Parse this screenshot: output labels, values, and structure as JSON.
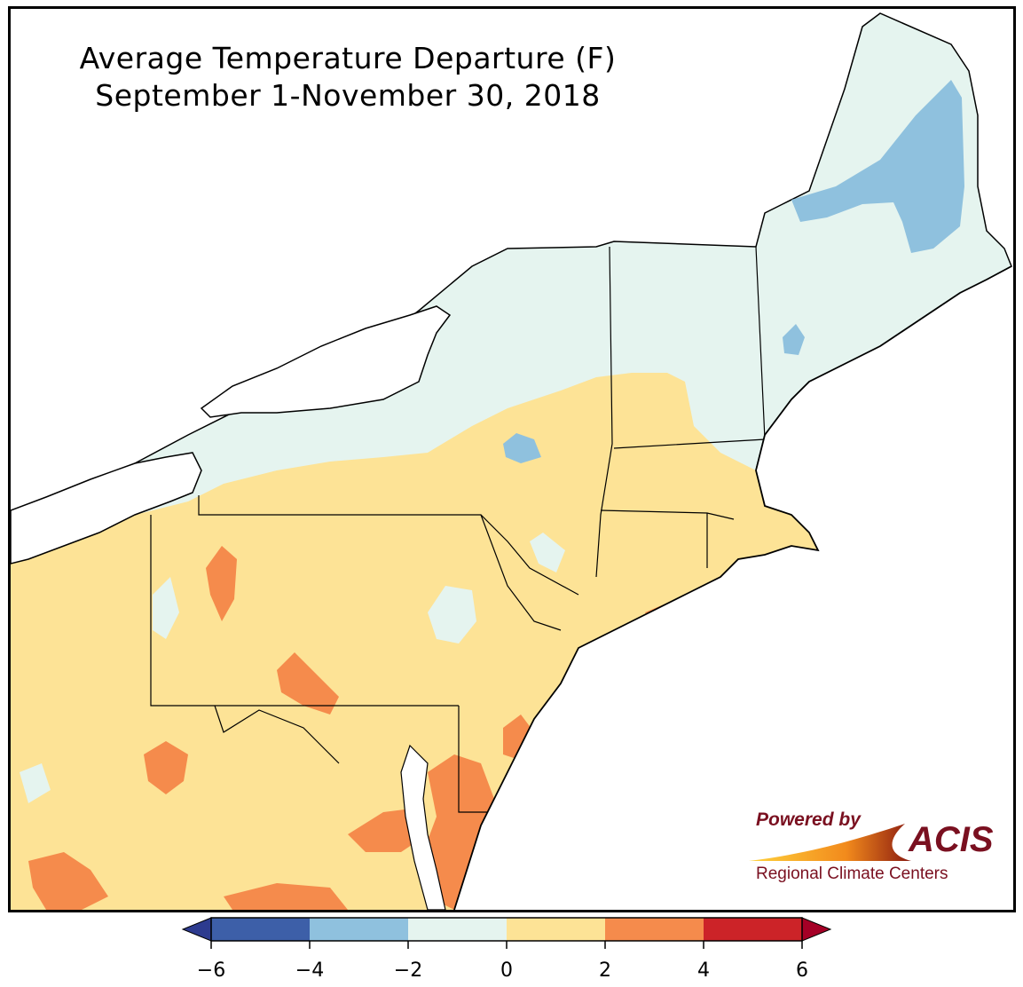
{
  "title": {
    "line1": "Average Temperature Departure (F)",
    "line2": "September 1-November 30, 2018"
  },
  "logo": {
    "powered_by": "Powered by",
    "name": "ACIS",
    "subtitle": "Regional Climate Centers"
  },
  "legend": {
    "bins": [
      {
        "from": -6,
        "to": -4,
        "color": "#3d5fa8"
      },
      {
        "from": -4,
        "to": -2,
        "color": "#8fc1de"
      },
      {
        "from": -2,
        "to": 0,
        "color": "#e5f4ef"
      },
      {
        "from": 0,
        "to": 2,
        "color": "#fde396"
      },
      {
        "from": 2,
        "to": 4,
        "color": "#f58b4c"
      },
      {
        "from": 4,
        "to": 6,
        "color": "#cc2328"
      }
    ],
    "under_color": "#2d3b8f",
    "over_color": "#a50026",
    "ticks": [
      "−6",
      "−4",
      "−2",
      "0",
      "2",
      "4",
      "6"
    ]
  }
}
